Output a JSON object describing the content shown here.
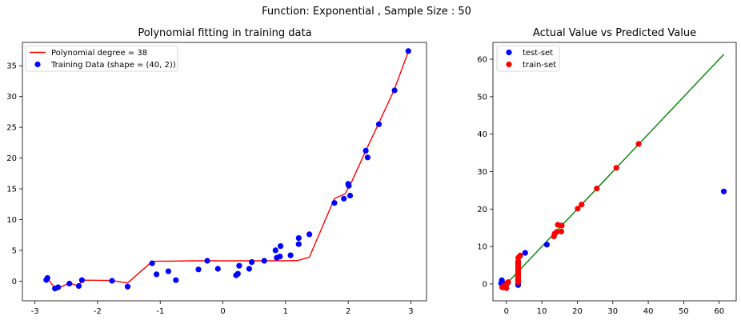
{
  "figure": {
    "suptitle": "Function: Exponential , Sample Size : 50"
  },
  "chart_data": [
    {
      "type": "line+scatter",
      "title": "Polynomial fitting in training data",
      "xlabel": "",
      "ylabel": "",
      "xlim": [
        -3.2,
        3.25
      ],
      "ylim": [
        -3.2,
        38.8
      ],
      "xticks": [
        -3,
        -2,
        -1,
        0,
        1,
        2,
        3
      ],
      "yticks": [
        0,
        5,
        10,
        15,
        20,
        25,
        30,
        35
      ],
      "grid": false,
      "legend": "top-left",
      "series": [
        {
          "name": "Polynomial degree = 38",
          "kind": "line",
          "color": "#ff0000",
          "points": [
            [
              -2.82,
              0.2
            ],
            [
              -2.8,
              0.5
            ],
            [
              -2.68,
              -1.2
            ],
            [
              -2.62,
              -1.1
            ],
            [
              -2.45,
              -0.3
            ],
            [
              -2.3,
              -0.8
            ],
            [
              -2.25,
              0.15
            ],
            [
              -1.78,
              0.1
            ],
            [
              -1.52,
              -0.3
            ],
            [
              -1.13,
              3.2
            ],
            [
              -1.0,
              3.25
            ],
            [
              -0.85,
              3.25
            ],
            [
              -0.5,
              3.3
            ],
            [
              0.0,
              3.3
            ],
            [
              0.5,
              3.3
            ],
            [
              1.0,
              3.3
            ],
            [
              1.2,
              3.35
            ],
            [
              1.38,
              3.9
            ],
            [
              1.78,
              13.4
            ],
            [
              1.95,
              14.2
            ],
            [
              2.03,
              15.6
            ],
            [
              2.28,
              21.2
            ],
            [
              2.48,
              25.5
            ],
            [
              2.73,
              31.0
            ],
            [
              2.96,
              37.3
            ]
          ]
        },
        {
          "name": "Training Data (shape = (40, 2))",
          "kind": "scatter",
          "color": "#0000ff",
          "points": [
            [
              -2.82,
              0.2
            ],
            [
              -2.8,
              0.5
            ],
            [
              -2.68,
              -1.2
            ],
            [
              -2.63,
              -1.0
            ],
            [
              -2.45,
              -0.4
            ],
            [
              -2.3,
              -0.8
            ],
            [
              -2.25,
              0.15
            ],
            [
              -1.77,
              0.05
            ],
            [
              -1.52,
              -0.9
            ],
            [
              -1.13,
              2.9
            ],
            [
              -1.06,
              1.1
            ],
            [
              -0.87,
              1.6
            ],
            [
              -0.75,
              0.15
            ],
            [
              -0.39,
              1.9
            ],
            [
              -0.25,
              3.3
            ],
            [
              -0.08,
              2.0
            ],
            [
              0.21,
              0.95
            ],
            [
              0.24,
              1.2
            ],
            [
              0.26,
              2.5
            ],
            [
              0.42,
              2.0
            ],
            [
              0.46,
              3.1
            ],
            [
              0.66,
              3.3
            ],
            [
              0.84,
              5.0
            ],
            [
              0.86,
              3.8
            ],
            [
              0.91,
              4.0
            ],
            [
              0.92,
              5.7
            ],
            [
              1.08,
              4.2
            ],
            [
              1.21,
              6.0
            ],
            [
              1.21,
              7.0
            ],
            [
              1.38,
              7.6
            ],
            [
              1.78,
              12.7
            ],
            [
              1.93,
              13.4
            ],
            [
              2.0,
              15.8
            ],
            [
              2.01,
              15.5
            ],
            [
              2.03,
              13.9
            ],
            [
              2.28,
              21.2
            ],
            [
              2.31,
              20.1
            ],
            [
              2.49,
              25.5
            ],
            [
              2.74,
              31.0
            ],
            [
              2.96,
              37.4
            ]
          ]
        }
      ]
    },
    {
      "type": "line+scatter",
      "title": "Actual Value vs Predicted Value",
      "xlabel": "",
      "ylabel": "",
      "xlim": [
        -3.8,
        64.8
      ],
      "ylim": [
        -4.5,
        64.5
      ],
      "xticks": [
        0,
        10,
        20,
        30,
        40,
        50,
        60
      ],
      "yticks": [
        0,
        10,
        20,
        30,
        40,
        50,
        60
      ],
      "grid": false,
      "legend": "top-left",
      "reference_line": {
        "color": "#008000",
        "points": [
          [
            -1.2,
            -1.2
          ],
          [
            61.3,
            61.3
          ]
        ]
      },
      "series": [
        {
          "name": "test-set",
          "kind": "scatter",
          "color": "#0000ff",
          "points": [
            [
              -1.5,
              0.2
            ],
            [
              -1.3,
              1.0
            ],
            [
              -0.9,
              -0.9
            ],
            [
              -0.4,
              0.0
            ],
            [
              0.2,
              0.15
            ],
            [
              3.3,
              0.4
            ],
            [
              3.3,
              -0.3
            ],
            [
              3.3,
              1.2
            ],
            [
              3.3,
              2.0
            ],
            [
              11.4,
              10.5
            ],
            [
              5.3,
              8.3
            ],
            [
              61.3,
              24.7
            ]
          ]
        },
        {
          "name": "train-set",
          "kind": "scatter",
          "color": "#ff0000",
          "points": [
            [
              -1.2,
              -0.9
            ],
            [
              -1.0,
              -0.8
            ],
            [
              -0.4,
              -0.3
            ],
            [
              0.0,
              -1.1
            ],
            [
              0.3,
              0.2
            ],
            [
              0.5,
              0.5
            ],
            [
              3.3,
              0.5
            ],
            [
              3.3,
              1.0
            ],
            [
              3.3,
              1.5
            ],
            [
              3.3,
              2.0
            ],
            [
              3.3,
              2.5
            ],
            [
              3.3,
              3.0
            ],
            [
              3.3,
              3.5
            ],
            [
              3.3,
              4.0
            ],
            [
              3.3,
              4.5
            ],
            [
              3.3,
              5.0
            ],
            [
              3.3,
              5.5
            ],
            [
              3.3,
              6.0
            ],
            [
              3.35,
              7.0
            ],
            [
              3.9,
              7.6
            ],
            [
              13.4,
              12.7
            ],
            [
              13.6,
              13.4
            ],
            [
              14.2,
              13.9
            ],
            [
              14.5,
              15.8
            ],
            [
              15.5,
              14.0
            ],
            [
              15.6,
              15.6
            ],
            [
              20.1,
              20.1
            ],
            [
              21.2,
              21.2
            ],
            [
              25.5,
              25.5
            ],
            [
              31.0,
              31.0
            ],
            [
              37.3,
              37.4
            ]
          ]
        }
      ]
    }
  ]
}
